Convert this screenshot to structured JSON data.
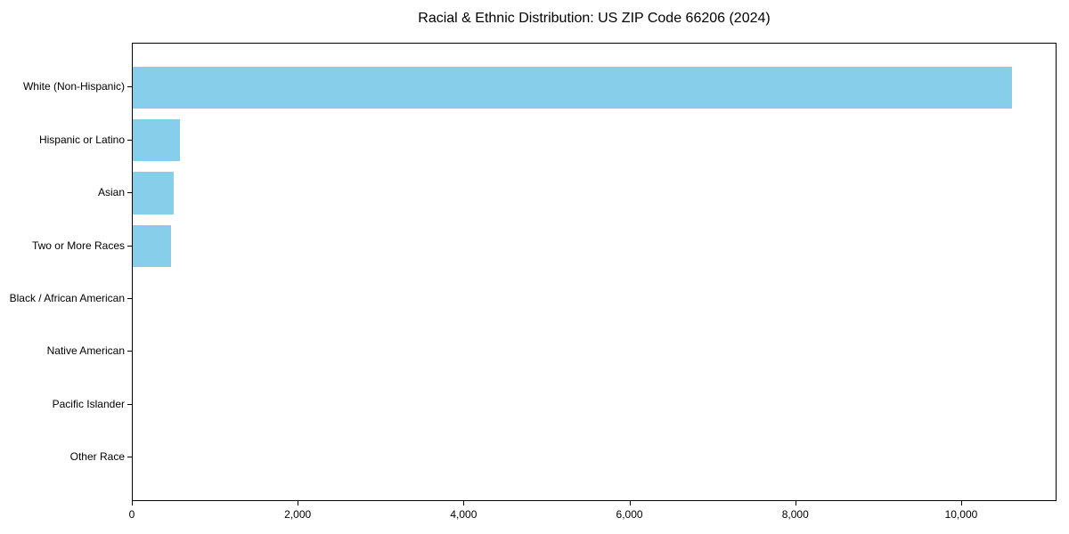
{
  "chart_data": {
    "type": "bar",
    "orientation": "horizontal",
    "title": "Racial & Ethnic Distribution: US ZIP Code 66206 (2024)",
    "categories": [
      "White (Non-Hispanic)",
      "Hispanic or Latino",
      "Asian",
      "Two or More Races",
      "Black / African American",
      "Native American",
      "Pacific Islander",
      "Other Race"
    ],
    "values": [
      10620,
      575,
      500,
      465,
      0,
      0,
      0,
      0
    ],
    "xlabel": "",
    "ylabel": "",
    "xlim": [
      0,
      11150
    ],
    "x_ticks": [
      0,
      2000,
      4000,
      6000,
      8000,
      10000
    ],
    "x_tick_labels": [
      "0",
      "2,000",
      "4,000",
      "6,000",
      "8,000",
      "10,000"
    ],
    "bar_color": "#87CEEB",
    "text_color": "#000000",
    "grid": false,
    "legend": null
  }
}
